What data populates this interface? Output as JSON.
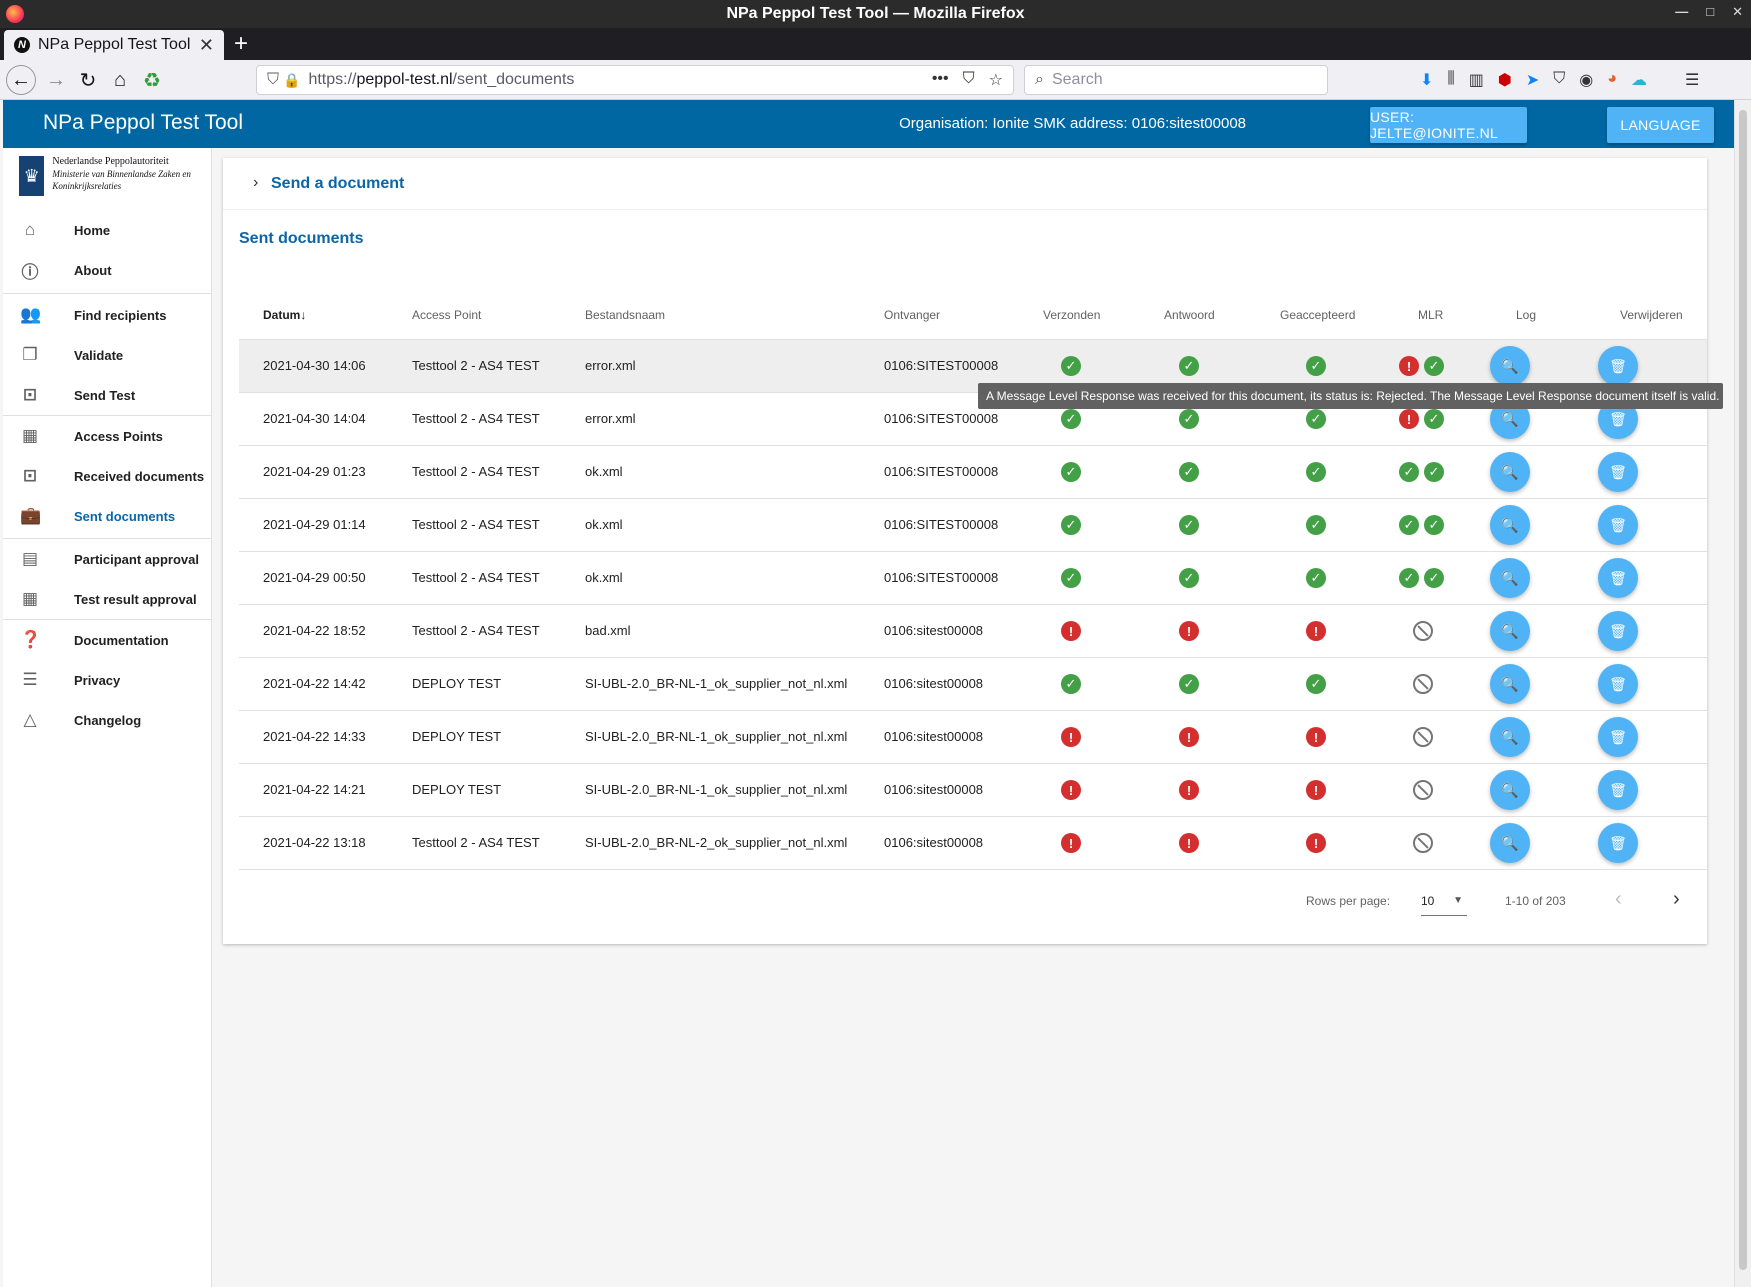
{
  "os": {
    "window_title": "NPa Peppol Test Tool — Mozilla Firefox",
    "controls": [
      "—",
      "□",
      "✕"
    ]
  },
  "browser": {
    "tab_title": "NPa Peppol Test Tool",
    "url_scheme": "https://",
    "url_domain": "peppol-test.nl",
    "url_path": "/sent_documents",
    "search_placeholder": "Search"
  },
  "header": {
    "title": "NPa Peppol Test Tool",
    "organisation": "Organisation: Ionite SMK address: 0106:sitest00008",
    "user_button": "USER: JELTE@IONITE.NL",
    "language_button": "LANGUAGE"
  },
  "sidebar": {
    "logo_title": "Nederlandse Peppolautoriteit",
    "logo_subtitle": "Ministerie van Binnenlandse Zaken en Koninkrijksrelaties",
    "items": [
      {
        "label": "Home",
        "icon": "home-icon"
      },
      {
        "label": "About",
        "icon": "info-icon"
      },
      {
        "label": "Find recipients",
        "icon": "people-icon"
      },
      {
        "label": "Validate",
        "icon": "copy-icon"
      },
      {
        "label": "Send Test",
        "icon": "send-box-icon"
      },
      {
        "label": "Access Points",
        "icon": "building-icon"
      },
      {
        "label": "Received documents",
        "icon": "inbox-icon"
      },
      {
        "label": "Sent documents",
        "icon": "briefcase-icon"
      },
      {
        "label": "Participant approval",
        "icon": "badge-icon"
      },
      {
        "label": "Test result approval",
        "icon": "building-icon"
      },
      {
        "label": "Documentation",
        "icon": "help-icon"
      },
      {
        "label": "Privacy",
        "icon": "list-icon"
      },
      {
        "label": "Changelog",
        "icon": "triangle-icon"
      }
    ]
  },
  "main": {
    "send_panel_title": "Send a document",
    "sent_title": "Sent documents",
    "columns": [
      "Datum",
      "Access Point",
      "Bestandsnaam",
      "Ontvanger",
      "Verzonden",
      "Antwoord",
      "Geaccepteerd",
      "MLR",
      "Log",
      "Verwijderen"
    ],
    "sort_indicator": "↓",
    "rows": [
      {
        "datum": "2021-04-30 14:06",
        "ap": "Testtool 2 - AS4 TEST",
        "file": "error.xml",
        "recv": "0106:SITEST00008",
        "verzonden": "ok",
        "antwoord": "ok",
        "geaccepteerd": "ok",
        "mlr": [
          "err",
          "ok"
        ]
      },
      {
        "datum": "2021-04-30 14:04",
        "ap": "Testtool 2 - AS4 TEST",
        "file": "error.xml",
        "recv": "0106:SITEST00008",
        "verzonden": "ok",
        "antwoord": "ok",
        "geaccepteerd": "ok",
        "mlr": [
          "err",
          "ok"
        ]
      },
      {
        "datum": "2021-04-29 01:23",
        "ap": "Testtool 2 - AS4 TEST",
        "file": "ok.xml",
        "recv": "0106:SITEST00008",
        "verzonden": "ok",
        "antwoord": "ok",
        "geaccepteerd": "ok",
        "mlr": [
          "ok",
          "ok"
        ]
      },
      {
        "datum": "2021-04-29 01:14",
        "ap": "Testtool 2 - AS4 TEST",
        "file": "ok.xml",
        "recv": "0106:SITEST00008",
        "verzonden": "ok",
        "antwoord": "ok",
        "geaccepteerd": "ok",
        "mlr": [
          "ok",
          "ok"
        ]
      },
      {
        "datum": "2021-04-29 00:50",
        "ap": "Testtool 2 - AS4 TEST",
        "file": "ok.xml",
        "recv": "0106:SITEST00008",
        "verzonden": "ok",
        "antwoord": "ok",
        "geaccepteerd": "ok",
        "mlr": [
          "ok",
          "ok"
        ]
      },
      {
        "datum": "2021-04-22 18:52",
        "ap": "Testtool 2 - AS4 TEST",
        "file": "bad.xml",
        "recv": "0106:sitest00008",
        "verzonden": "err",
        "antwoord": "err",
        "geaccepteerd": "err",
        "mlr": [
          "none"
        ]
      },
      {
        "datum": "2021-04-22 14:42",
        "ap": "DEPLOY TEST",
        "file": "SI-UBL-2.0_BR-NL-1_ok_supplier_not_nl.xml",
        "recv": "0106:sitest00008",
        "verzonden": "ok",
        "antwoord": "ok",
        "geaccepteerd": "ok",
        "mlr": [
          "none"
        ]
      },
      {
        "datum": "2021-04-22 14:33",
        "ap": "DEPLOY TEST",
        "file": "SI-UBL-2.0_BR-NL-1_ok_supplier_not_nl.xml",
        "recv": "0106:sitest00008",
        "verzonden": "err",
        "antwoord": "err",
        "geaccepteerd": "err",
        "mlr": [
          "none"
        ]
      },
      {
        "datum": "2021-04-22 14:21",
        "ap": "DEPLOY TEST",
        "file": "SI-UBL-2.0_BR-NL-1_ok_supplier_not_nl.xml",
        "recv": "0106:sitest00008",
        "verzonden": "err",
        "antwoord": "err",
        "geaccepteerd": "err",
        "mlr": [
          "none"
        ]
      },
      {
        "datum": "2021-04-22 13:18",
        "ap": "Testtool 2 - AS4 TEST",
        "file": "SI-UBL-2.0_BR-NL-2_ok_supplier_not_nl.xml",
        "recv": "0106:sitest00008",
        "verzonden": "err",
        "antwoord": "err",
        "geaccepteerd": "err",
        "mlr": [
          "none"
        ]
      }
    ],
    "tooltip": "A Message Level Response was received for this document, its status is: Rejected. The Message Level Response document itself is valid.",
    "footer": {
      "rows_per_page_label": "Rows per page:",
      "rows_per_page_value": "10",
      "range": "1-10 of 203"
    }
  },
  "colors": {
    "header_blue": "#0067a2",
    "button_blue": "#4fb3f6",
    "ok_green": "#43a047",
    "err_red": "#d32f2f",
    "link_blue": "#0a66a8"
  }
}
